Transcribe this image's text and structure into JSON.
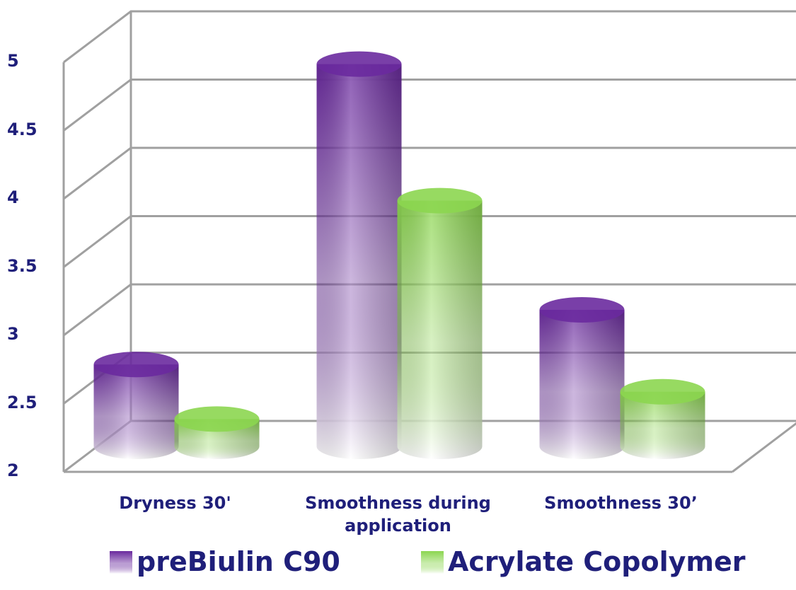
{
  "chart_data": {
    "type": "bar3d",
    "categories": [
      "Dryness 30'",
      "Smoothness during application",
      "Smoothness 30’"
    ],
    "series": [
      {
        "name": "preBiulin C90",
        "color": "#6a2a9e",
        "values": [
          2.6,
          4.8,
          3.0
        ]
      },
      {
        "name": "Acrylate Copolymer",
        "color": "#8cd650",
        "values": [
          2.2,
          3.8,
          2.4
        ]
      }
    ],
    "ylim": [
      2,
      5
    ],
    "yticks": [
      2,
      2.5,
      3,
      3.5,
      4,
      4.5,
      5
    ],
    "grid": true,
    "legend": "bottom"
  }
}
